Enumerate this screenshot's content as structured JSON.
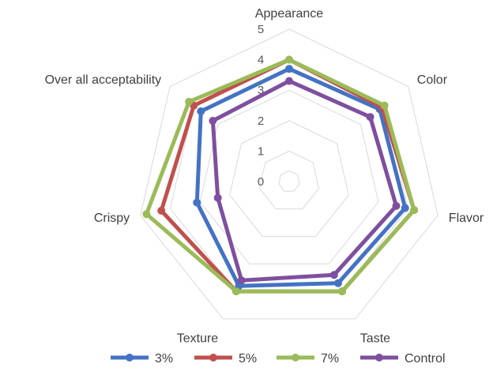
{
  "chart_data": {
    "type": "radar",
    "categories": [
      "Appearance",
      "Color",
      "Flavor",
      "Taste",
      "Texture",
      "Crispy",
      "Over all acceptability"
    ],
    "rlim": [
      0,
      5
    ],
    "ticks": [
      "0",
      "1",
      "2",
      "3",
      "4",
      "5"
    ],
    "grid": true,
    "legend_position": "bottom",
    "series": [
      {
        "name": "3%",
        "color": "#4472C4",
        "values": [
          3.7,
          3.8,
          3.9,
          3.7,
          3.8,
          3.1,
          3.7
        ]
      },
      {
        "name": "5%",
        "color": "#C0504D",
        "values": [
          4.0,
          3.9,
          4.2,
          4.0,
          4.0,
          4.3,
          4.0
        ]
      },
      {
        "name": "7%",
        "color": "#9BBB59",
        "values": [
          4.0,
          4.0,
          4.2,
          4.0,
          4.0,
          4.8,
          4.2
        ]
      },
      {
        "name": "Control",
        "color": "#7F4F9F",
        "values": [
          3.3,
          3.4,
          3.6,
          3.4,
          3.6,
          2.4,
          3.2
        ]
      }
    ]
  }
}
